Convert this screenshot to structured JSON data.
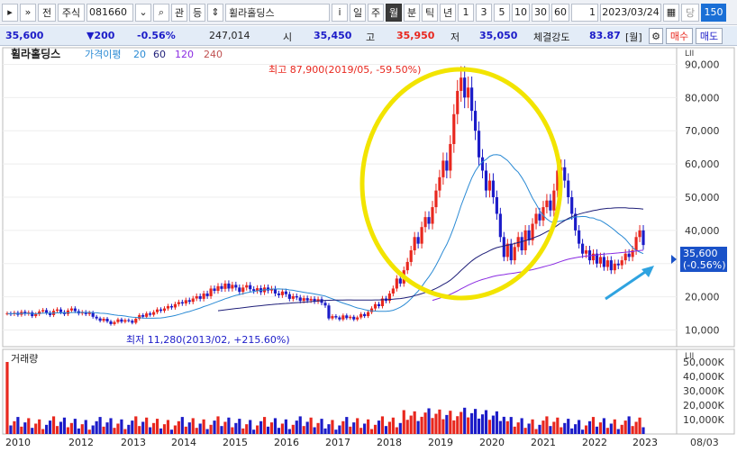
{
  "toolbar": {
    "market": "전",
    "type": "주식",
    "code": "081660",
    "query": "관",
    "updown": "등",
    "name": "휠라홀딩스",
    "info": "i",
    "periods": [
      "일",
      "주",
      "월",
      "분",
      "틱",
      "년"
    ],
    "selected_period": "월",
    "nums": [
      "1",
      "3",
      "5",
      "10",
      "30",
      "60"
    ],
    "count": "1",
    "date": "2023/03/24",
    "reset": "당",
    "bars": "150"
  },
  "price": {
    "current": "35,600",
    "change": "▼200",
    "rate": "-0.56%",
    "volume": "247,014",
    "open_label": "시",
    "open": "35,450",
    "high_label": "고",
    "high": "35,950",
    "low_label": "저",
    "low": "35,050",
    "strength_label": "체결강도",
    "strength": "83.87",
    "period_label": "[월]",
    "sell": "매수",
    "buy": "매도"
  },
  "legend": {
    "name": "휠라홀딩스",
    "ma_label": "가격이평",
    "ma": [
      "20",
      "60",
      "120",
      "240"
    ]
  },
  "annotations": {
    "high": "최고 87,900(2019/05, -59.50%)",
    "low": "최저 11,280(2013/02, +215.60%)"
  },
  "current_tag": {
    "price": "35,600",
    "rate": "(-0.56%)"
  },
  "volume_title": "거래량",
  "y_unit_tag": "LII",
  "date_tag": "08/03",
  "colors": {
    "up": "#e8271e",
    "down": "#1c1cc8",
    "ma20": "#2a8ad4",
    "ma60": "#1e1e78",
    "ma120": "#8a2be2",
    "ma240": "#c05050",
    "highlight": "#f2e400",
    "arrow": "#2fa3e0"
  },
  "chart_data": {
    "type": "candlestick",
    "price_axis": {
      "ticks": [
        90000,
        80000,
        70000,
        60000,
        50000,
        40000,
        30000,
        20000,
        10000
      ],
      "labels": [
        "90,000",
        "80,000",
        "70,000",
        "60,000",
        "50,000",
        "40,000",
        "30,000",
        "20,000",
        "10,000"
      ]
    },
    "volume_axis": {
      "ticks": [
        50000,
        40000,
        30000,
        20000,
        10000
      ],
      "labels": [
        "50,000K",
        "40,000K",
        "30,000K",
        "20,000K",
        "10,000K"
      ]
    },
    "x_labels": [
      "2010",
      "2012",
      "2013",
      "2014",
      "2015",
      "2016",
      "2017",
      "2018",
      "2019",
      "2020",
      "2021",
      "2022",
      "2023"
    ],
    "closes": [
      15000,
      14800,
      15200,
      14600,
      15500,
      14900,
      15300,
      14200,
      14800,
      15600,
      16000,
      15200,
      14500,
      15800,
      16200,
      15400,
      14800,
      15900,
      16500,
      15700,
      15000,
      15400,
      14800,
      15200,
      14000,
      13500,
      12800,
      13400,
      12600,
      11800,
      12400,
      13200,
      12500,
      13000,
      12800,
      12200,
      13400,
      14500,
      14000,
      15000,
      14600,
      15400,
      16200,
      15800,
      16500,
      17200,
      16800,
      17800,
      18400,
      18000,
      19000,
      18500,
      19500,
      20200,
      19400,
      21000,
      20200,
      22500,
      21800,
      23200,
      22400,
      24000,
      22500,
      23600,
      22800,
      21500,
      22800,
      23500,
      22300,
      21800,
      22600,
      21400,
      22800,
      21900,
      22400,
      21000,
      20500,
      21600,
      20800,
      19400,
      20200,
      19800,
      18800,
      19600,
      18900,
      19400,
      18600,
      19300,
      18200,
      17400,
      13500,
      14200,
      13800,
      13200,
      14400,
      13600,
      14000,
      13200,
      13800,
      14800,
      14200,
      15400,
      16500,
      17800,
      17200,
      19500,
      18800,
      21000,
      22500,
      25500,
      24000,
      28000,
      30500,
      34000,
      38000,
      36000,
      41000,
      44000,
      42000,
      47000,
      52000,
      56000,
      61000,
      58000,
      66000,
      75000,
      82000,
      86000,
      80000,
      83000,
      76000,
      70000,
      62000,
      58000,
      52000,
      55000,
      50000,
      45000,
      38000,
      32000,
      36000,
      31000,
      35000,
      38000,
      34000,
      40000,
      37000,
      42000,
      45000,
      43000,
      47000,
      49000,
      46000,
      52000,
      58000,
      59000,
      55000,
      50000,
      45000,
      40000,
      36000,
      33000,
      34000,
      31000,
      33000,
      30000,
      32000,
      29000,
      31000,
      28000,
      30000,
      29500,
      31000,
      33000,
      32000,
      34000,
      38000,
      40000,
      35600
    ],
    "ma20_hint": "moving average lines derived from closes"
  }
}
